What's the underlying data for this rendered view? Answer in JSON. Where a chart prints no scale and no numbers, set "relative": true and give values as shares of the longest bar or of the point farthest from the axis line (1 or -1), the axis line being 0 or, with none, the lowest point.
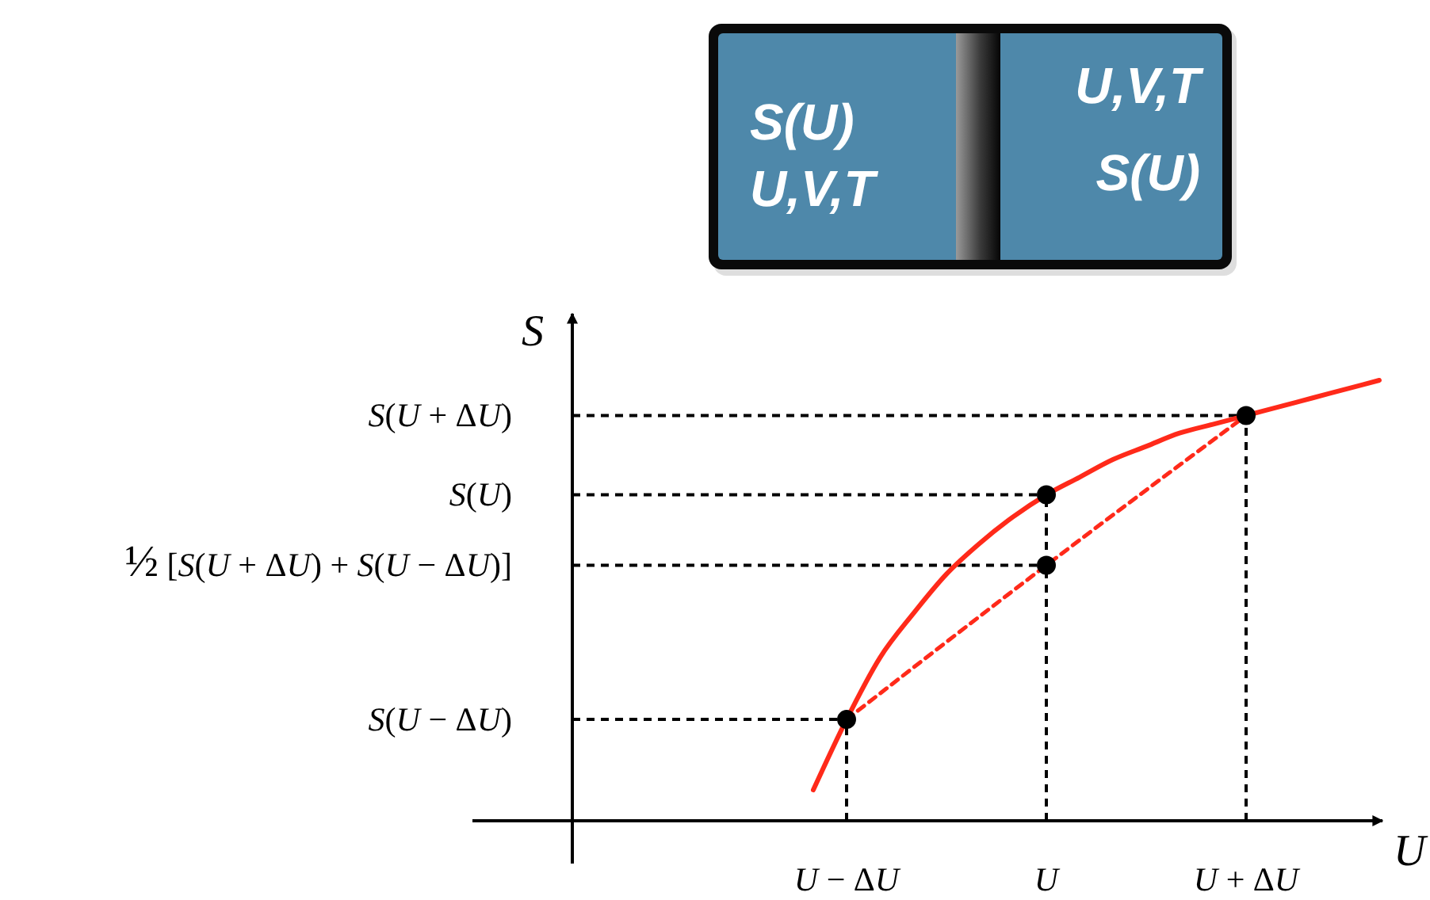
{
  "chart_data": [
    {
      "type": "other",
      "annotations": [
        "S(U)",
        "U,V,T",
        "U,V,T",
        "S(U)"
      ]
    },
    {
      "type": "line",
      "relative": true,
      "xlabel": "U",
      "ylabel": "S",
      "categories": [
        null,
        "U − ΔU",
        null,
        null,
        null,
        null,
        null,
        "U",
        null,
        null,
        null,
        null,
        null,
        "U + ΔU",
        null,
        null,
        null,
        null
      ],
      "series": [
        {
          "type": "line",
          "color": "#ff2a1a",
          "line_style": "solid",
          "values": [
            0.07,
            0.23,
            0.37,
            0.47,
            0.56,
            0.63,
            0.69,
            0.74,
            0.78,
            0.82,
            0.85,
            0.88,
            0.9,
            0.92,
            0.94,
            0.96,
            0.98,
            1
          ]
        },
        {
          "type": "line",
          "color": "#ff2a1a",
          "line_style": "dashed",
          "values": [
            null,
            0.23,
            null,
            null,
            null,
            null,
            null,
            0.58,
            null,
            null,
            null,
            null,
            null,
            0.92,
            null,
            null,
            null,
            null
          ]
        },
        {
          "type": "scatter",
          "color": "#000000",
          "marker": "circle",
          "values": [
            null,
            0.23,
            null,
            null,
            null,
            null,
            null,
            0.74,
            null,
            null,
            null,
            null,
            null,
            0.92,
            null,
            null,
            null,
            null
          ]
        },
        {
          "type": "scatter",
          "color": "#000000",
          "marker": "circle",
          "values": [
            null,
            null,
            null,
            null,
            null,
            null,
            null,
            0.58,
            null,
            null,
            null,
            null,
            null,
            null,
            null,
            null,
            null,
            null
          ]
        }
      ],
      "ref_lines": [
        {
          "axis": "y",
          "value": 0.92,
          "label": "S(U + ΔU)",
          "color": "#000000",
          "line_style": "dashed"
        },
        {
          "axis": "y",
          "value": 0.74,
          "label": "S(U)",
          "color": "#000000",
          "line_style": "dashed"
        },
        {
          "axis": "y",
          "value": 0.58,
          "label": "½ [S(U + ΔU) + S(U − ΔU)]",
          "color": "#000000",
          "line_style": "dashed"
        },
        {
          "axis": "y",
          "value": 0.23,
          "label": "S(U − ΔU)",
          "color": "#000000",
          "line_style": "dashed"
        }
      ],
      "grid": "x"
    }
  ]
}
